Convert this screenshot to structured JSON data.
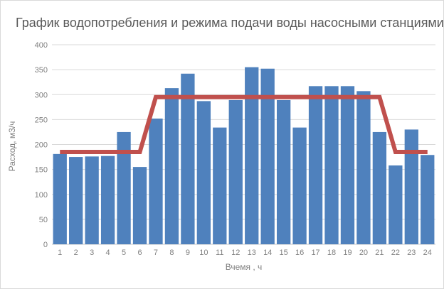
{
  "frame": {
    "background": "#ffffff",
    "border_color": "#d9d9d9"
  },
  "chart_data": {
    "type": "bar",
    "title": "График водопотребления и режима подачи воды насосными станциями",
    "xlabel": "Вчемя , ч",
    "ylabel": "Расход, м3/ч",
    "categories": [
      1,
      2,
      3,
      4,
      5,
      6,
      7,
      8,
      9,
      10,
      11,
      12,
      13,
      14,
      15,
      16,
      17,
      18,
      19,
      20,
      21,
      22,
      23,
      24
    ],
    "series": [
      {
        "id": "consumption-bars",
        "type": "bar",
        "color": "#4f81bd",
        "values": [
          181,
          175,
          176,
          177,
          225,
          155,
          252,
          313,
          342,
          287,
          234,
          289,
          355,
          352,
          289,
          234,
          317,
          317,
          317,
          307,
          225,
          158,
          230,
          179
        ]
      },
      {
        "id": "supply-line",
        "type": "line",
        "color": "#c0504d",
        "stroke_width": 6,
        "values": [
          185,
          185,
          185,
          185,
          185,
          185,
          295,
          295,
          295,
          295,
          295,
          295,
          295,
          295,
          295,
          295,
          295,
          295,
          295,
          295,
          295,
          185,
          185,
          185
        ]
      }
    ],
    "ylim": [
      0,
      400
    ],
    "ytick_step": 50,
    "grid": true,
    "legend": "none",
    "colors": {
      "gridline": "#d9d9d9",
      "axis_line": "#c6c6c6",
      "tick_label": "#808080",
      "title": "#595959",
      "axis_title": "#7f7f7f"
    }
  }
}
